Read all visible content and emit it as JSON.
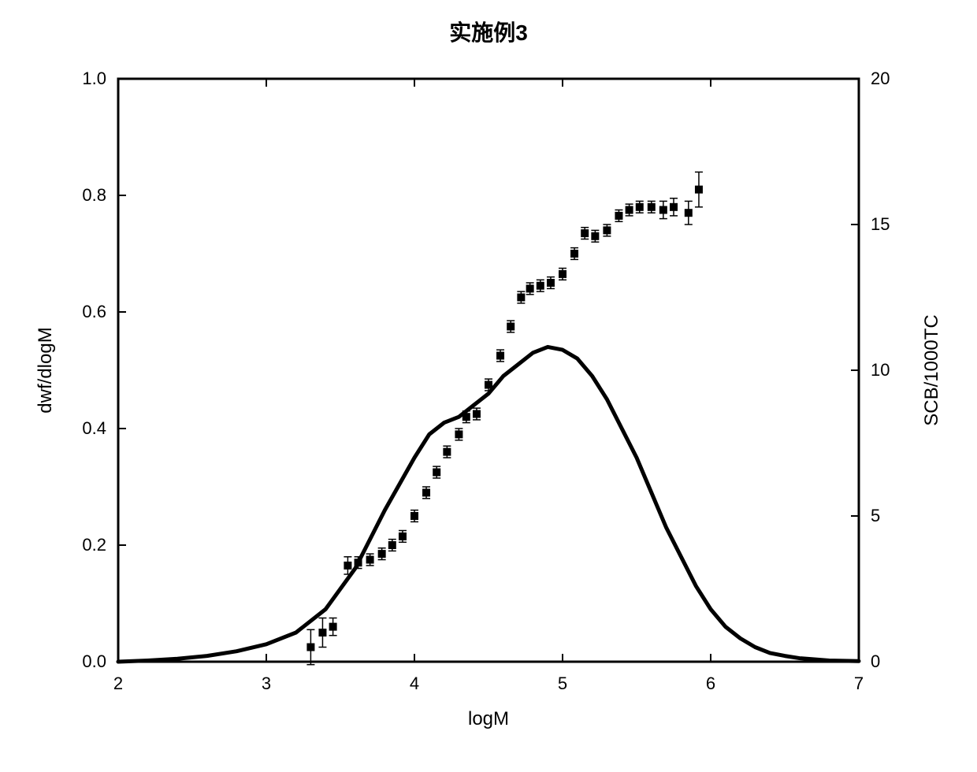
{
  "chart": {
    "type": "dual-axis-line-scatter",
    "title": "实施例3",
    "title_fontsize": 28,
    "title_weight": "bold",
    "background_color": "#ffffff",
    "plot_border_color": "#000000",
    "plot_border_width": 3,
    "xlabel": "logM",
    "xlabel_fontsize": 24,
    "ylabel_left": "dwf/dlogM",
    "ylabel_left_fontsize": 24,
    "ylabel_right": "SCB/1000TC",
    "ylabel_right_fontsize": 24,
    "tick_fontsize": 22,
    "tick_length": 10,
    "tick_width": 2,
    "xlim": [
      2,
      7
    ],
    "xticks": [
      2,
      3,
      4,
      5,
      6,
      7
    ],
    "ylim_left": [
      0.0,
      1.0
    ],
    "yticks_left": [
      0.0,
      0.2,
      0.4,
      0.6,
      0.8,
      1.0
    ],
    "ylim_right": [
      0,
      20
    ],
    "yticks_right": [
      0,
      5,
      10,
      15,
      20
    ],
    "line_series": {
      "name": "dwf/dlogM curve",
      "color": "#000000",
      "width": 5,
      "points": [
        [
          2.0,
          0.0
        ],
        [
          2.2,
          0.002
        ],
        [
          2.4,
          0.005
        ],
        [
          2.6,
          0.01
        ],
        [
          2.8,
          0.018
        ],
        [
          3.0,
          0.03
        ],
        [
          3.2,
          0.05
        ],
        [
          3.4,
          0.09
        ],
        [
          3.6,
          0.16
        ],
        [
          3.8,
          0.26
        ],
        [
          4.0,
          0.35
        ],
        [
          4.1,
          0.39
        ],
        [
          4.2,
          0.41
        ],
        [
          4.3,
          0.42
        ],
        [
          4.4,
          0.44
        ],
        [
          4.5,
          0.46
        ],
        [
          4.6,
          0.49
        ],
        [
          4.7,
          0.51
        ],
        [
          4.8,
          0.53
        ],
        [
          4.9,
          0.54
        ],
        [
          5.0,
          0.535
        ],
        [
          5.1,
          0.52
        ],
        [
          5.2,
          0.49
        ],
        [
          5.3,
          0.45
        ],
        [
          5.4,
          0.4
        ],
        [
          5.5,
          0.35
        ],
        [
          5.6,
          0.29
        ],
        [
          5.7,
          0.23
        ],
        [
          5.8,
          0.18
        ],
        [
          5.9,
          0.13
        ],
        [
          6.0,
          0.09
        ],
        [
          6.1,
          0.06
        ],
        [
          6.2,
          0.04
        ],
        [
          6.3,
          0.025
        ],
        [
          6.4,
          0.015
        ],
        [
          6.5,
          0.01
        ],
        [
          6.6,
          0.006
        ],
        [
          6.7,
          0.004
        ],
        [
          6.8,
          0.002
        ],
        [
          7.0,
          0.001
        ]
      ]
    },
    "scatter_series": {
      "name": "SCB/1000TC points",
      "marker_color": "#000000",
      "marker_size": 10,
      "marker_shape": "square",
      "errorbar_color": "#000000",
      "errorbar_width": 1.5,
      "points": [
        {
          "x": 3.3,
          "y": 0.5,
          "err": 0.6
        },
        {
          "x": 3.38,
          "y": 1.0,
          "err": 0.5
        },
        {
          "x": 3.45,
          "y": 1.2,
          "err": 0.3
        },
        {
          "x": 3.55,
          "y": 3.3,
          "err": 0.3
        },
        {
          "x": 3.62,
          "y": 3.4,
          "err": 0.2
        },
        {
          "x": 3.7,
          "y": 3.5,
          "err": 0.2
        },
        {
          "x": 3.78,
          "y": 3.7,
          "err": 0.2
        },
        {
          "x": 3.85,
          "y": 4.0,
          "err": 0.2
        },
        {
          "x": 3.92,
          "y": 4.3,
          "err": 0.2
        },
        {
          "x": 4.0,
          "y": 5.0,
          "err": 0.2
        },
        {
          "x": 4.08,
          "y": 5.8,
          "err": 0.2
        },
        {
          "x": 4.15,
          "y": 6.5,
          "err": 0.2
        },
        {
          "x": 4.22,
          "y": 7.2,
          "err": 0.2
        },
        {
          "x": 4.3,
          "y": 7.8,
          "err": 0.2
        },
        {
          "x": 4.35,
          "y": 8.4,
          "err": 0.2
        },
        {
          "x": 4.42,
          "y": 8.5,
          "err": 0.2
        },
        {
          "x": 4.5,
          "y": 9.5,
          "err": 0.2
        },
        {
          "x": 4.58,
          "y": 10.5,
          "err": 0.2
        },
        {
          "x": 4.65,
          "y": 11.5,
          "err": 0.2
        },
        {
          "x": 4.72,
          "y": 12.5,
          "err": 0.2
        },
        {
          "x": 4.78,
          "y": 12.8,
          "err": 0.2
        },
        {
          "x": 4.85,
          "y": 12.9,
          "err": 0.2
        },
        {
          "x": 4.92,
          "y": 13.0,
          "err": 0.2
        },
        {
          "x": 5.0,
          "y": 13.3,
          "err": 0.2
        },
        {
          "x": 5.08,
          "y": 14.0,
          "err": 0.2
        },
        {
          "x": 5.15,
          "y": 14.7,
          "err": 0.2
        },
        {
          "x": 5.22,
          "y": 14.6,
          "err": 0.2
        },
        {
          "x": 5.3,
          "y": 14.8,
          "err": 0.2
        },
        {
          "x": 5.38,
          "y": 15.3,
          "err": 0.2
        },
        {
          "x": 5.45,
          "y": 15.5,
          "err": 0.2
        },
        {
          "x": 5.52,
          "y": 15.6,
          "err": 0.2
        },
        {
          "x": 5.6,
          "y": 15.6,
          "err": 0.2
        },
        {
          "x": 5.68,
          "y": 15.5,
          "err": 0.3
        },
        {
          "x": 5.75,
          "y": 15.6,
          "err": 0.3
        },
        {
          "x": 5.85,
          "y": 15.4,
          "err": 0.4
        },
        {
          "x": 5.92,
          "y": 16.2,
          "err": 0.6
        }
      ]
    }
  }
}
